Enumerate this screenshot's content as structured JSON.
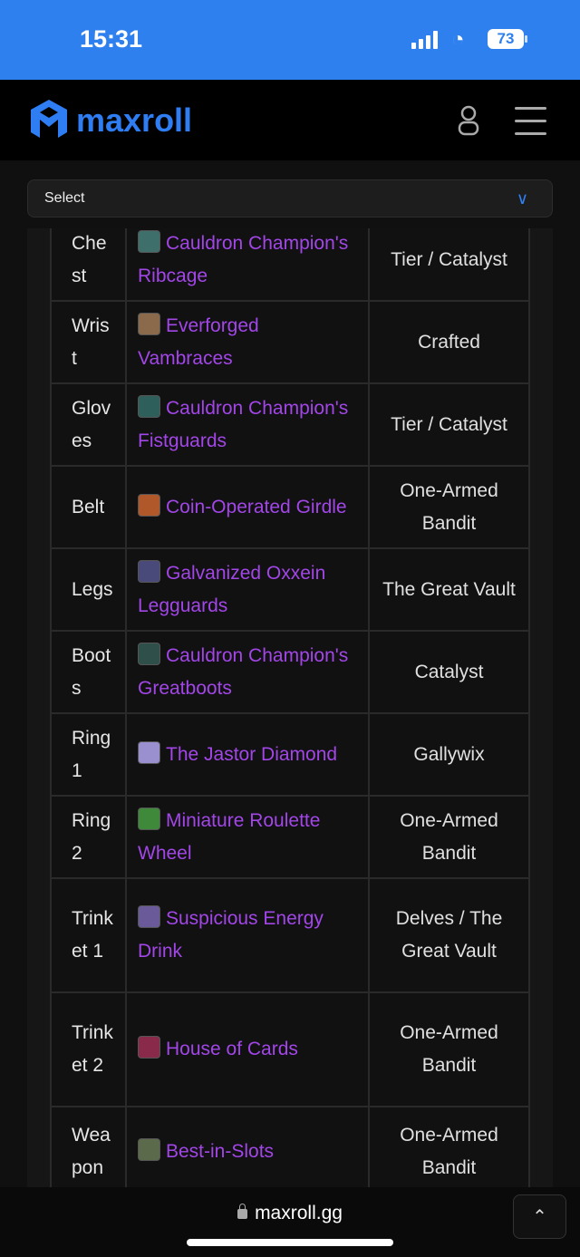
{
  "status_bar": {
    "time": "15:31",
    "battery": "73"
  },
  "nav": {
    "logo_text": "maxroll",
    "brand_color": "#2f7df2"
  },
  "select": {
    "label": "Select"
  },
  "gear_table": {
    "rows": [
      {
        "slot": "Chest",
        "item": "Cauldron Champion's Ribcage",
        "source": "Tier / Catalyst",
        "icon_color": "#3f6f6a"
      },
      {
        "slot": "Wrist",
        "item": "Everforged Vambraces",
        "source": "Crafted",
        "icon_color": "#8a6a4a"
      },
      {
        "slot": "Gloves",
        "item": "Cauldron Champion's Fistguards",
        "source": "Tier / Catalyst",
        "icon_color": "#2f5f5a"
      },
      {
        "slot": "Belt",
        "item": "Coin-Operated Girdle",
        "source": "One-Armed Bandit",
        "icon_color": "#b0582a"
      },
      {
        "slot": "Legs",
        "item": "Galvanized Oxxein Legguards",
        "source": "The Great Vault",
        "icon_color": "#4a4a7a"
      },
      {
        "slot": "Boots",
        "item": "Cauldron Champion's Greatboots",
        "source": "Catalyst",
        "icon_color": "#2f4f4a"
      },
      {
        "slot": "Ring 1",
        "item": "The Jastor Diamond",
        "source": "Gallywix",
        "icon_color": "#9a90d0"
      },
      {
        "slot": "Ring 2",
        "item": "Miniature Roulette Wheel",
        "source": "One-Armed Bandit",
        "icon_color": "#3f8a3a"
      },
      {
        "slot": "Trinket 1",
        "item": "Suspicious Energy Drink",
        "source": "Delves / The Great Vault",
        "icon_color": "#6a5a9a"
      },
      {
        "slot": "Trinket 2",
        "item": "House of Cards",
        "source": "One-Armed Bandit",
        "icon_color": "#8a2a4a"
      },
      {
        "slot": "Weapon",
        "item": "Best-in-Slots",
        "source": "One-Armed Bandit",
        "icon_color": "#5a6a4a"
      }
    ]
  },
  "link_color": "#a246e8",
  "browser": {
    "url": "maxroll.gg"
  }
}
